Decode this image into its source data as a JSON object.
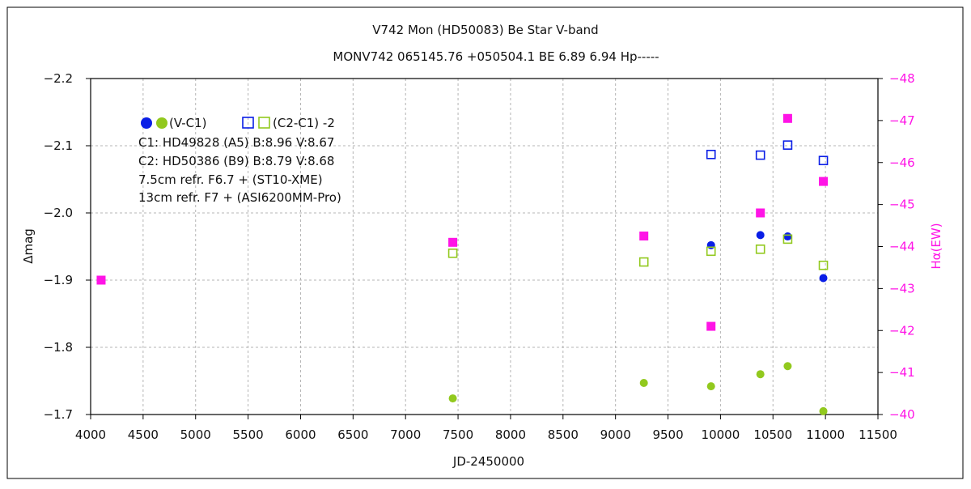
{
  "chart_data": {
    "type": "scatter",
    "title": "V742 Mon (HD50083)    Be Star    V-band",
    "subtitle": "MONV742 065145.76 +050504.1 BE 6.89 6.94 Hp-----",
    "xlabel": "JD-2450000",
    "ylabel": "Δmag",
    "y2label": "Hα(EW)",
    "xlim": [
      4000,
      11500
    ],
    "ylim": [
      -1.7,
      -2.2
    ],
    "y2lim": [
      -40,
      -48
    ],
    "xticks": [
      4000,
      4500,
      5000,
      5500,
      6000,
      6500,
      7000,
      7500,
      8000,
      8500,
      9000,
      9500,
      10000,
      10500,
      11000,
      11500
    ],
    "yticks": [
      -2.2,
      -2.1,
      -2.0,
      -1.9,
      -1.8,
      -1.7
    ],
    "y2ticks": [
      -48,
      -47,
      -46,
      -45,
      -44,
      -43,
      -42,
      -41,
      -40
    ],
    "grid": true,
    "legend_label_vc1": "(V-C1)",
    "legend_label_c2c1": "(C2-C1) -2",
    "legend_placement": "top-left",
    "info_lines": [
      "C1: HD49828 (A5)  B:8.96  V:8.67",
      "C2: HD50386 (B9)  B:8.79  V:8.68",
      "7.5cm refr. F6.7  +   (ST10-XME)",
      "13cm refr. F7  +   (ASI6200MM-Pro)"
    ],
    "series": [
      {
        "key": "vc1_blue",
        "axis": "left",
        "marker": "filled-circle",
        "color": "#0a1ee6",
        "x": [
          9910,
          10380,
          10640,
          10980
        ],
        "y": [
          -1.952,
          -1.967,
          -1.965,
          -1.903
        ]
      },
      {
        "key": "vc1_green",
        "axis": "left",
        "marker": "filled-circle",
        "color": "#92c91e",
        "x": [
          7450,
          9270,
          9910,
          10380,
          10640,
          10980
        ],
        "y": [
          -1.724,
          -1.747,
          -1.742,
          -1.76,
          -1.772,
          -1.705
        ]
      },
      {
        "key": "c2c1_blue",
        "axis": "left",
        "marker": "open-square",
        "color": "#0a1ee6",
        "x": [
          9910,
          10380,
          10640,
          10980
        ],
        "y": [
          -2.087,
          -2.086,
          -2.101,
          -2.078
        ]
      },
      {
        "key": "c2c1_green",
        "axis": "left",
        "marker": "open-square",
        "color": "#92c91e",
        "x": [
          7450,
          9270,
          9910,
          10380,
          10640,
          10980
        ],
        "y": [
          -1.94,
          -1.927,
          -1.943,
          -1.946,
          -1.961,
          -1.922
        ]
      },
      {
        "key": "halpha",
        "axis": "right",
        "marker": "filled-square",
        "color": "#ff14e6",
        "x": [
          4100,
          7450,
          9270,
          9910,
          10380,
          10640,
          10980
        ],
        "y": [
          -43.2,
          -44.1,
          -44.25,
          -42.1,
          -44.8,
          -47.05,
          -45.55
        ]
      }
    ]
  }
}
